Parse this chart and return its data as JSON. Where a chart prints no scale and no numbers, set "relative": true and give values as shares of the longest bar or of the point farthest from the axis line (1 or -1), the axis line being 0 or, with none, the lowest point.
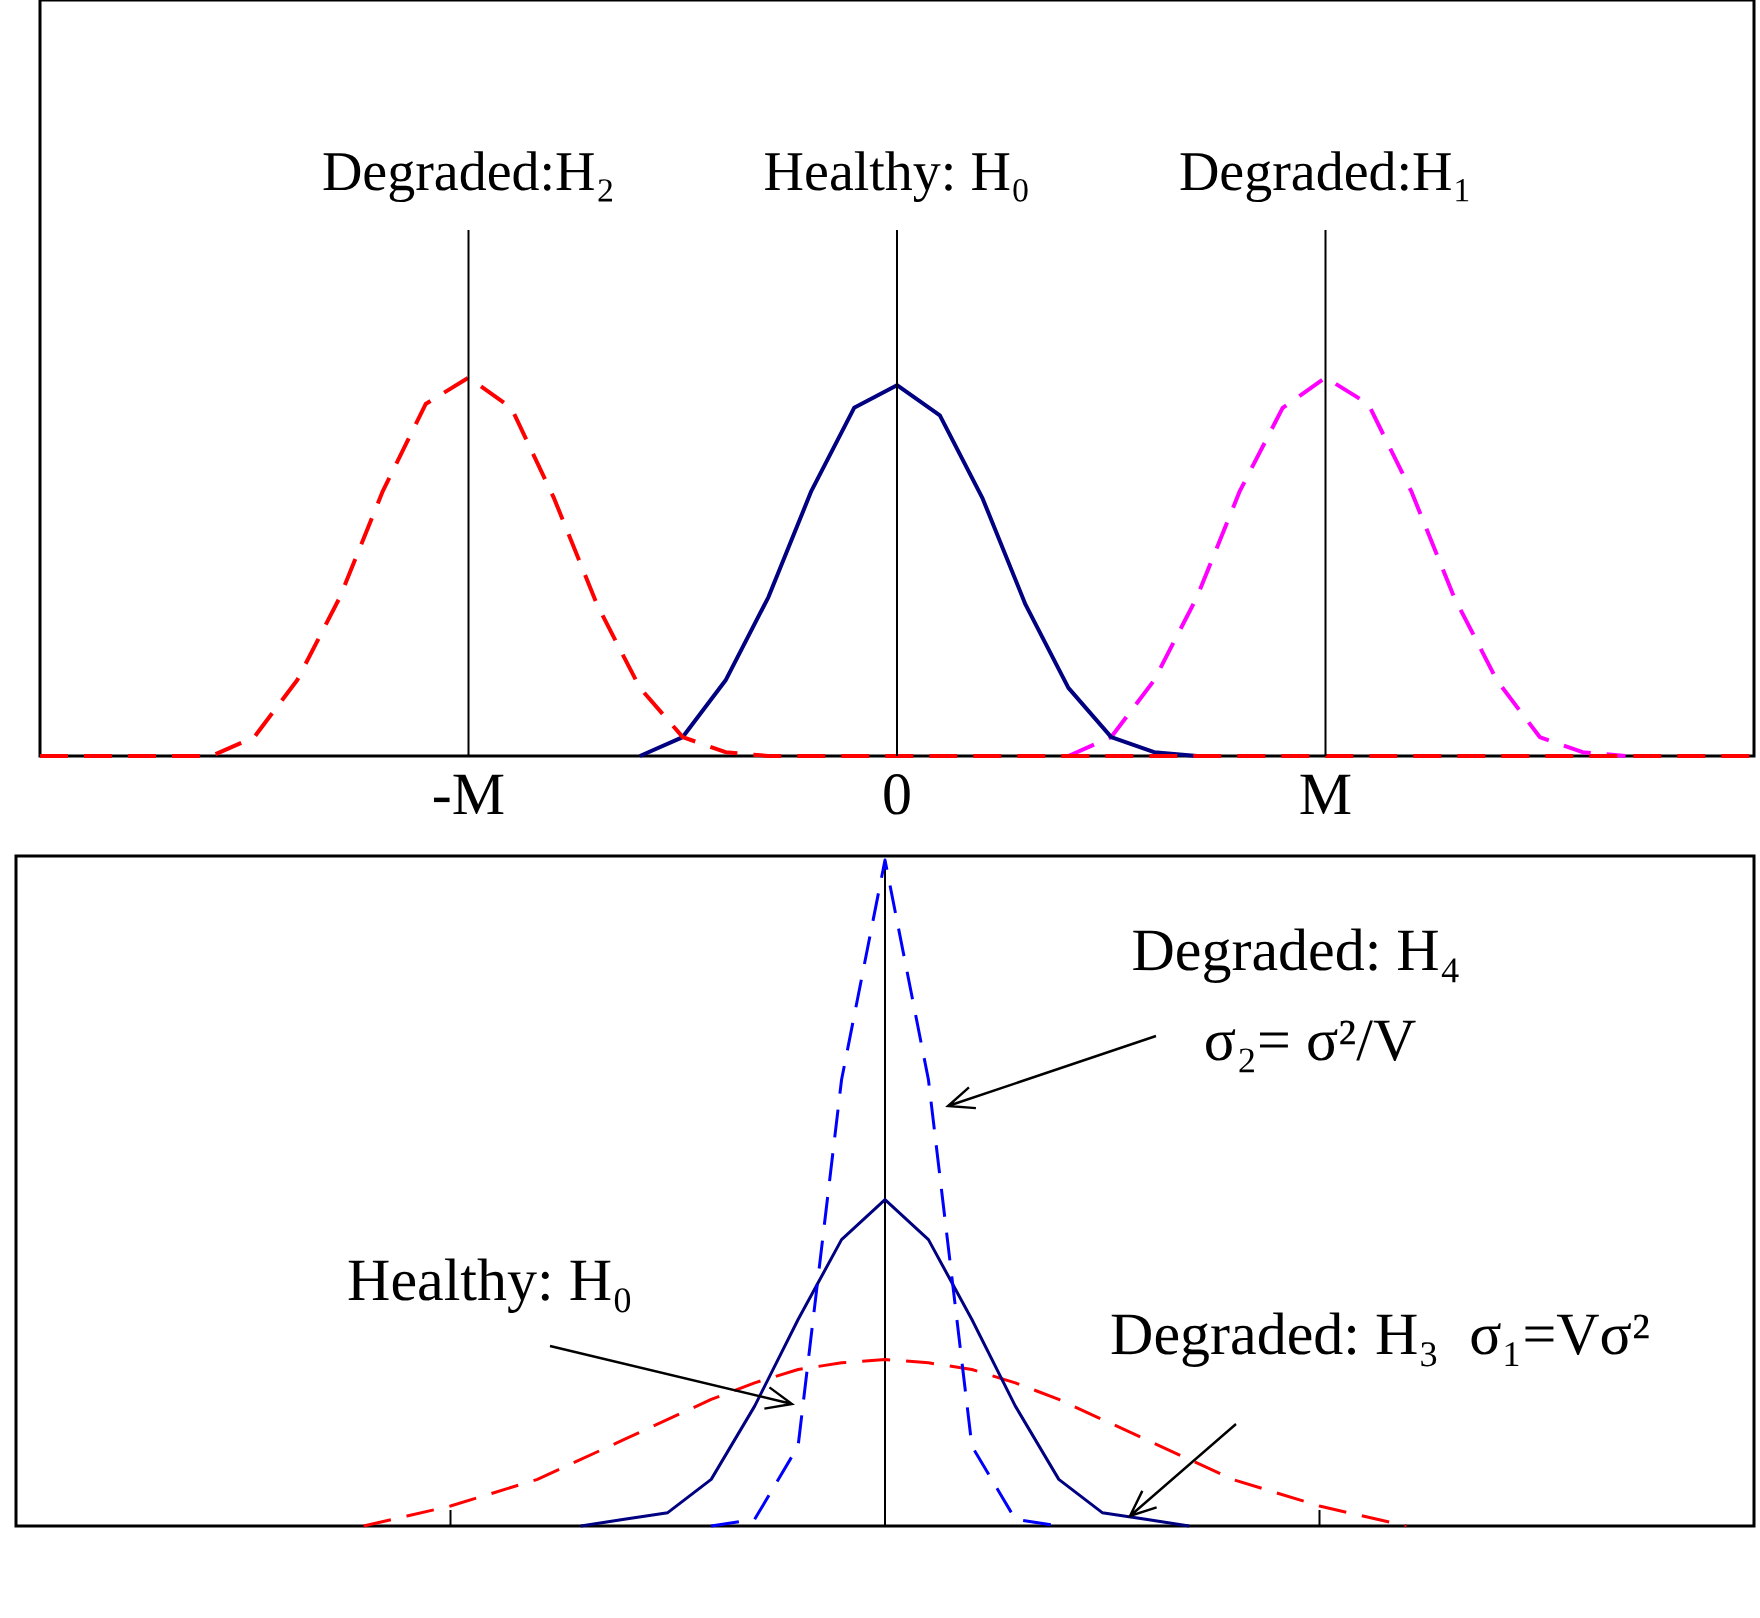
{
  "chart_data": [
    {
      "type": "line",
      "relative": true,
      "categories": [
        null,
        null,
        null,
        null,
        null,
        null,
        null,
        null,
        null,
        null,
        "-M",
        null,
        null,
        null,
        null,
        null,
        null,
        null,
        null,
        null,
        "0",
        null,
        null,
        null,
        null,
        null,
        null,
        null,
        null,
        null,
        "M",
        null,
        null,
        null,
        null,
        null,
        null,
        null,
        null,
        null,
        null
      ],
      "grid": false,
      "legend": false,
      "ref_lines": [
        {
          "axis": "x",
          "value": "-M",
          "label": "Degraded:H₂"
        },
        {
          "axis": "x",
          "value": "0",
          "label": "Healthy: H₀"
        },
        {
          "axis": "x",
          "value": "M",
          "label": "Degraded:H₁"
        }
      ],
      "series": [
        {
          "color": "#ff0000",
          "line_style": "dashed",
          "values": [
            0,
            0,
            0,
            0,
            0,
            0.05,
            0.2,
            0.42,
            0.7,
            0.93,
            1,
            0.92,
            0.68,
            0.4,
            0.18,
            0.05,
            0.01,
            0,
            0,
            0,
            0,
            0,
            0,
            0,
            0,
            0,
            0,
            0,
            0,
            0,
            0,
            0,
            0,
            0,
            0,
            0,
            0,
            0,
            0,
            0,
            0
          ]
        },
        {
          "color": "#000080",
          "line_style": "solid",
          "values": [
            null,
            null,
            null,
            null,
            null,
            null,
            null,
            null,
            null,
            null,
            null,
            null,
            null,
            null,
            0,
            0.05,
            0.2,
            0.42,
            0.7,
            0.92,
            0.98,
            0.9,
            0.68,
            0.4,
            0.18,
            0.05,
            0.01,
            0,
            null,
            null,
            null,
            null,
            null,
            null,
            null,
            null,
            null,
            null,
            null,
            null,
            null
          ]
        },
        {
          "color": "#ff00ff",
          "line_style": "dashed",
          "values": [
            null,
            null,
            null,
            null,
            null,
            null,
            null,
            null,
            null,
            null,
            null,
            null,
            null,
            null,
            null,
            null,
            null,
            null,
            null,
            null,
            null,
            null,
            null,
            null,
            0,
            0.05,
            0.2,
            0.42,
            0.7,
            0.92,
            1,
            0.93,
            0.7,
            0.42,
            0.2,
            0.05,
            0.01,
            0,
            null,
            null,
            null
          ]
        }
      ]
    },
    {
      "type": "line",
      "relative": true,
      "categories": [
        null,
        null,
        null,
        null,
        null,
        null,
        null,
        null,
        null,
        null,
        null,
        null,
        null,
        null,
        null,
        null,
        null,
        null,
        null,
        null,
        null,
        null,
        null,
        null,
        null,
        null,
        null,
        null,
        null,
        null,
        null,
        null,
        null,
        null,
        null,
        null,
        null,
        null,
        null,
        null,
        null
      ],
      "grid": false,
      "legend": false,
      "annotations": [
        "Degraded: H₄",
        "σ₂= σ²/V",
        "Healthy: H₀",
        "Degraded: H₃  σ₁=Vσ²"
      ],
      "series": [
        {
          "color": "#0000ff",
          "line_style": "dashed",
          "values": [
            null,
            null,
            null,
            null,
            null,
            null,
            null,
            null,
            null,
            null,
            null,
            null,
            null,
            null,
            null,
            null,
            0,
            0.01,
            0.12,
            0.67,
            1,
            0.67,
            0.12,
            0.01,
            0,
            null,
            null,
            null,
            null,
            null,
            null,
            null,
            null,
            null,
            null,
            null,
            null,
            null,
            null,
            null,
            null
          ]
        },
        {
          "color": "#000080",
          "line_style": "solid",
          "values": [
            null,
            null,
            null,
            null,
            null,
            null,
            null,
            null,
            null,
            null,
            null,
            null,
            null,
            0,
            0.01,
            0.02,
            0.07,
            0.18,
            0.31,
            0.43,
            0.49,
            0.43,
            0.31,
            0.18,
            0.07,
            0.02,
            0.01,
            0,
            null,
            null,
            null,
            null,
            null,
            null,
            null,
            null,
            null,
            null,
            null,
            null,
            null
          ]
        },
        {
          "color": "#ff0000",
          "line_style": "dashed",
          "values": [
            null,
            null,
            null,
            null,
            null,
            null,
            null,
            null,
            0,
            0.015,
            0.03,
            0.05,
            0.07,
            0.1,
            0.13,
            0.16,
            0.19,
            0.215,
            0.235,
            0.245,
            0.25,
            0.245,
            0.235,
            0.215,
            0.19,
            0.16,
            0.13,
            0.1,
            0.07,
            0.05,
            0.03,
            0.015,
            0,
            null,
            null,
            null,
            null,
            null,
            null,
            null,
            null
          ]
        }
      ]
    }
  ]
}
